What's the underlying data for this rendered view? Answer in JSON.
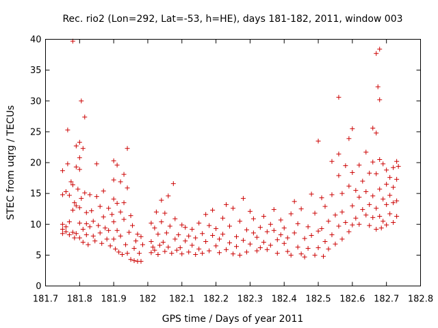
{
  "chart_data": {
    "type": "scatter",
    "title": "Rec. rio2 (Lon=292, Lat=-53, h=HE), days 181-182, 2011, window 003",
    "xlabel": "GPS time / Days of year 2011",
    "ylabel": "STEC from uqrg / TECUs",
    "xlim": [
      181.7,
      182.8
    ],
    "ylim": [
      0,
      40
    ],
    "xticks": [
      181.7,
      181.8,
      181.9,
      182,
      182.1,
      182.2,
      182.3,
      182.4,
      182.5,
      182.6,
      182.7,
      182.8
    ],
    "xtick_labels": [
      "181.7",
      "181.8",
      "181.9",
      "182",
      "182.1",
      "182.2",
      "182.3",
      "182.4",
      "182.5",
      "182.6",
      "182.7",
      "182.8"
    ],
    "yticks": [
      0,
      5,
      10,
      15,
      20,
      25,
      30,
      35,
      40
    ],
    "ytick_labels": [
      "0",
      "5",
      "10",
      "15",
      "20",
      "25",
      "30",
      "35",
      "40"
    ],
    "marker": "+",
    "color": "#cc0000",
    "grid": false,
    "series": [
      {
        "name": "STEC",
        "points": [
          [
            181.75,
            18.7
          ],
          [
            181.75,
            14.8
          ],
          [
            181.75,
            10.0
          ],
          [
            181.75,
            9.2
          ],
          [
            181.75,
            8.5
          ],
          [
            181.76,
            15.3
          ],
          [
            181.76,
            9.6
          ],
          [
            181.76,
            8.8
          ],
          [
            181.765,
            19.8
          ],
          [
            181.765,
            25.3
          ],
          [
            181.77,
            14.7
          ],
          [
            181.77,
            10.4
          ],
          [
            181.77,
            8.3
          ],
          [
            181.775,
            16.9
          ],
          [
            181.78,
            39.7
          ],
          [
            181.78,
            16.4
          ],
          [
            181.78,
            12.3
          ],
          [
            181.78,
            8.7
          ],
          [
            181.785,
            13.5
          ],
          [
            181.785,
            7.8
          ],
          [
            181.79,
            22.7
          ],
          [
            181.79,
            19.3
          ],
          [
            181.79,
            13.0
          ],
          [
            181.79,
            8.5
          ],
          [
            181.795,
            15.7
          ],
          [
            181.8,
            23.3
          ],
          [
            181.8,
            20.8
          ],
          [
            181.8,
            18.9
          ],
          [
            181.8,
            12.7
          ],
          [
            181.8,
            10.2
          ],
          [
            181.8,
            7.8
          ],
          [
            181.805,
            30.0
          ],
          [
            181.805,
            14.2
          ],
          [
            181.81,
            22.3
          ],
          [
            181.81,
            9.2
          ],
          [
            181.81,
            7.1
          ],
          [
            181.815,
            27.4
          ],
          [
            181.815,
            15.1
          ],
          [
            181.82,
            11.9
          ],
          [
            181.82,
            10.1
          ],
          [
            181.82,
            8.3
          ],
          [
            181.825,
            6.7
          ],
          [
            181.83,
            14.8
          ],
          [
            181.83,
            9.6
          ],
          [
            181.835,
            12.2
          ],
          [
            181.84,
            10.5
          ],
          [
            181.84,
            8.1
          ],
          [
            181.845,
            7.3
          ],
          [
            181.85,
            19.8
          ],
          [
            181.85,
            14.5
          ],
          [
            181.855,
            9.8
          ],
          [
            181.86,
            12.9
          ],
          [
            181.86,
            8.6
          ],
          [
            181.865,
            6.9
          ],
          [
            181.87,
            15.4
          ],
          [
            181.87,
            11.2
          ],
          [
            181.875,
            9.4
          ],
          [
            181.88,
            7.6
          ],
          [
            181.885,
            12.6
          ],
          [
            181.885,
            9.0
          ],
          [
            181.89,
            6.5
          ],
          [
            181.895,
            11.6
          ],
          [
            181.9,
            20.3
          ],
          [
            181.9,
            17.2
          ],
          [
            181.9,
            14.1
          ],
          [
            181.9,
            10.4
          ],
          [
            181.9,
            7.6
          ],
          [
            181.905,
            6.0
          ],
          [
            181.91,
            19.6
          ],
          [
            181.91,
            13.4
          ],
          [
            181.91,
            9.0
          ],
          [
            181.915,
            5.5
          ],
          [
            181.92,
            16.9
          ],
          [
            181.92,
            12.0
          ],
          [
            181.92,
            8.1
          ],
          [
            181.925,
            5.1
          ],
          [
            181.93,
            18.1
          ],
          [
            181.93,
            13.5
          ],
          [
            181.93,
            10.8
          ],
          [
            181.935,
            6.7
          ],
          [
            181.94,
            22.3
          ],
          [
            181.94,
            15.9
          ],
          [
            181.94,
            5.3
          ],
          [
            181.945,
            8.7
          ],
          [
            181.95,
            11.4
          ],
          [
            181.95,
            4.3
          ],
          [
            181.955,
            9.8
          ],
          [
            181.96,
            6.1
          ],
          [
            181.96,
            4.1
          ],
          [
            181.965,
            7.3
          ],
          [
            181.97,
            8.4
          ],
          [
            181.97,
            4.0
          ],
          [
            181.975,
            5.3
          ],
          [
            181.98,
            8.0
          ],
          [
            181.98,
            4.0
          ],
          [
            181.985,
            6.7
          ],
          [
            182.01,
            10.2
          ],
          [
            182.01,
            7.2
          ],
          [
            182.01,
            5.4
          ],
          [
            182.015,
            6.3
          ],
          [
            182.02,
            9.4
          ],
          [
            182.02,
            5.8
          ],
          [
            182.025,
            12.0
          ],
          [
            182.03,
            8.4
          ],
          [
            182.03,
            5.1
          ],
          [
            182.035,
            6.6
          ],
          [
            182.04,
            13.9
          ],
          [
            182.04,
            10.4
          ],
          [
            182.045,
            7.1
          ],
          [
            182.05,
            5.6
          ],
          [
            182.05,
            11.8
          ],
          [
            182.055,
            8.6
          ],
          [
            182.06,
            14.6
          ],
          [
            182.06,
            6.3
          ],
          [
            182.065,
            9.7
          ],
          [
            182.07,
            5.3
          ],
          [
            182.075,
            16.6
          ],
          [
            182.08,
            10.9
          ],
          [
            182.08,
            7.6
          ],
          [
            182.085,
            5.8
          ],
          [
            182.09,
            8.3
          ],
          [
            182.095,
            6.2
          ],
          [
            182.1,
            9.9
          ],
          [
            182.1,
            5.2
          ],
          [
            182.11,
            7.3
          ],
          [
            182.11,
            9.5
          ],
          [
            182.12,
            5.5
          ],
          [
            182.12,
            8.1
          ],
          [
            182.13,
            6.6
          ],
          [
            182.13,
            9.2
          ],
          [
            182.14,
            5.1
          ],
          [
            182.14,
            7.8
          ],
          [
            182.15,
            10.2
          ],
          [
            182.15,
            6.0
          ],
          [
            182.16,
            8.5
          ],
          [
            182.16,
            5.3
          ],
          [
            182.17,
            11.6
          ],
          [
            182.17,
            7.2
          ],
          [
            182.18,
            9.8
          ],
          [
            182.18,
            5.7
          ],
          [
            182.19,
            8.2
          ],
          [
            182.19,
            12.3
          ],
          [
            182.2,
            6.5
          ],
          [
            182.2,
            9.3
          ],
          [
            182.21,
            5.4
          ],
          [
            182.21,
            7.6
          ],
          [
            182.22,
            11.0
          ],
          [
            182.22,
            8.4
          ],
          [
            182.23,
            5.9
          ],
          [
            182.23,
            13.2
          ],
          [
            182.24,
            7.0
          ],
          [
            182.24,
            9.7
          ],
          [
            182.25,
            5.2
          ],
          [
            182.25,
            12.6
          ],
          [
            182.26,
            8.0
          ],
          [
            182.26,
            6.4
          ],
          [
            182.27,
            10.5
          ],
          [
            182.27,
            5.0
          ],
          [
            182.28,
            14.2
          ],
          [
            182.28,
            7.4
          ],
          [
            182.29,
            9.1
          ],
          [
            182.29,
            5.5
          ],
          [
            182.3,
            12.1
          ],
          [
            182.3,
            6.8
          ],
          [
            182.31,
            8.6
          ],
          [
            182.31,
            10.9
          ],
          [
            182.32,
            5.7
          ],
          [
            182.32,
            7.9
          ],
          [
            182.33,
            9.5
          ],
          [
            182.33,
            6.2
          ],
          [
            182.34,
            11.3
          ],
          [
            182.34,
            7.1
          ],
          [
            182.35,
            8.8
          ],
          [
            182.35,
            5.9
          ],
          [
            182.36,
            10.0
          ],
          [
            182.36,
            6.6
          ],
          [
            182.37,
            9.0
          ],
          [
            182.37,
            12.4
          ],
          [
            182.38,
            7.5
          ],
          [
            182.38,
            5.3
          ],
          [
            182.39,
            8.3
          ],
          [
            182.39,
            10.7
          ],
          [
            182.4,
            6.9
          ],
          [
            182.4,
            9.4
          ],
          [
            182.41,
            5.6
          ],
          [
            182.41,
            7.8
          ],
          [
            182.42,
            11.7
          ],
          [
            182.42,
            5.0
          ],
          [
            182.43,
            8.6
          ],
          [
            182.43,
            13.7
          ],
          [
            182.44,
            6.3
          ],
          [
            182.44,
            10.1
          ],
          [
            182.45,
            5.2
          ],
          [
            182.45,
            12.5
          ],
          [
            182.46,
            7.7
          ],
          [
            182.46,
            4.7
          ],
          [
            182.47,
            9.6
          ],
          [
            182.47,
            6.1
          ],
          [
            182.48,
            14.9
          ],
          [
            182.48,
            8.2
          ],
          [
            182.49,
            5.0
          ],
          [
            182.49,
            11.8
          ],
          [
            182.5,
            23.5
          ],
          [
            182.5,
            8.9
          ],
          [
            182.5,
            6.2
          ],
          [
            182.51,
            14.3
          ],
          [
            182.51,
            9.3
          ],
          [
            182.515,
            4.8
          ],
          [
            182.52,
            12.9
          ],
          [
            182.52,
            7.2
          ],
          [
            182.53,
            10.5
          ],
          [
            182.53,
            6.0
          ],
          [
            182.54,
            20.2
          ],
          [
            182.54,
            14.8
          ],
          [
            182.54,
            8.3
          ],
          [
            182.55,
            11.5
          ],
          [
            182.55,
            6.8
          ],
          [
            182.56,
            30.6
          ],
          [
            182.56,
            21.4
          ],
          [
            182.56,
            17.9
          ],
          [
            182.56,
            9.7
          ],
          [
            182.57,
            15.0
          ],
          [
            182.57,
            12.0
          ],
          [
            182.57,
            7.6
          ],
          [
            182.58,
            19.5
          ],
          [
            182.58,
            10.3
          ],
          [
            182.59,
            23.9
          ],
          [
            182.59,
            16.2
          ],
          [
            182.59,
            8.8
          ],
          [
            182.6,
            25.5
          ],
          [
            182.6,
            18.4
          ],
          [
            182.6,
            13.0
          ],
          [
            182.6,
            9.9
          ],
          [
            182.61,
            15.5
          ],
          [
            182.61,
            11.0
          ],
          [
            182.62,
            19.6
          ],
          [
            182.62,
            14.4
          ],
          [
            182.62,
            10.0
          ],
          [
            182.63,
            17.0
          ],
          [
            182.63,
            12.4
          ],
          [
            182.64,
            21.7
          ],
          [
            182.64,
            15.3
          ],
          [
            182.64,
            11.5
          ],
          [
            182.65,
            18.3
          ],
          [
            182.65,
            13.2
          ],
          [
            182.65,
            9.8
          ],
          [
            182.66,
            25.6
          ],
          [
            182.66,
            20.1
          ],
          [
            182.66,
            14.6
          ],
          [
            182.66,
            11.1
          ],
          [
            182.67,
            37.7
          ],
          [
            182.67,
            24.8
          ],
          [
            182.67,
            18.2
          ],
          [
            182.67,
            12.6
          ],
          [
            182.67,
            9.2
          ],
          [
            182.675,
            32.3
          ],
          [
            182.68,
            38.4
          ],
          [
            182.68,
            30.2
          ],
          [
            182.68,
            20.5
          ],
          [
            182.68,
            15.7
          ],
          [
            182.68,
            11.3
          ],
          [
            182.685,
            9.4
          ],
          [
            182.69,
            19.8
          ],
          [
            182.69,
            14.1
          ],
          [
            182.69,
            10.5
          ],
          [
            182.7,
            18.8
          ],
          [
            182.7,
            16.5
          ],
          [
            182.7,
            13.2
          ],
          [
            182.7,
            9.9
          ],
          [
            182.71,
            17.6
          ],
          [
            182.71,
            14.7
          ],
          [
            182.71,
            11.7
          ],
          [
            182.72,
            19.2
          ],
          [
            182.72,
            16.0
          ],
          [
            182.72,
            13.5
          ],
          [
            182.72,
            10.3
          ],
          [
            182.73,
            20.2
          ],
          [
            182.73,
            17.3
          ],
          [
            182.73,
            13.8
          ],
          [
            182.73,
            11.3
          ],
          [
            182.735,
            19.4
          ]
        ]
      }
    ]
  }
}
